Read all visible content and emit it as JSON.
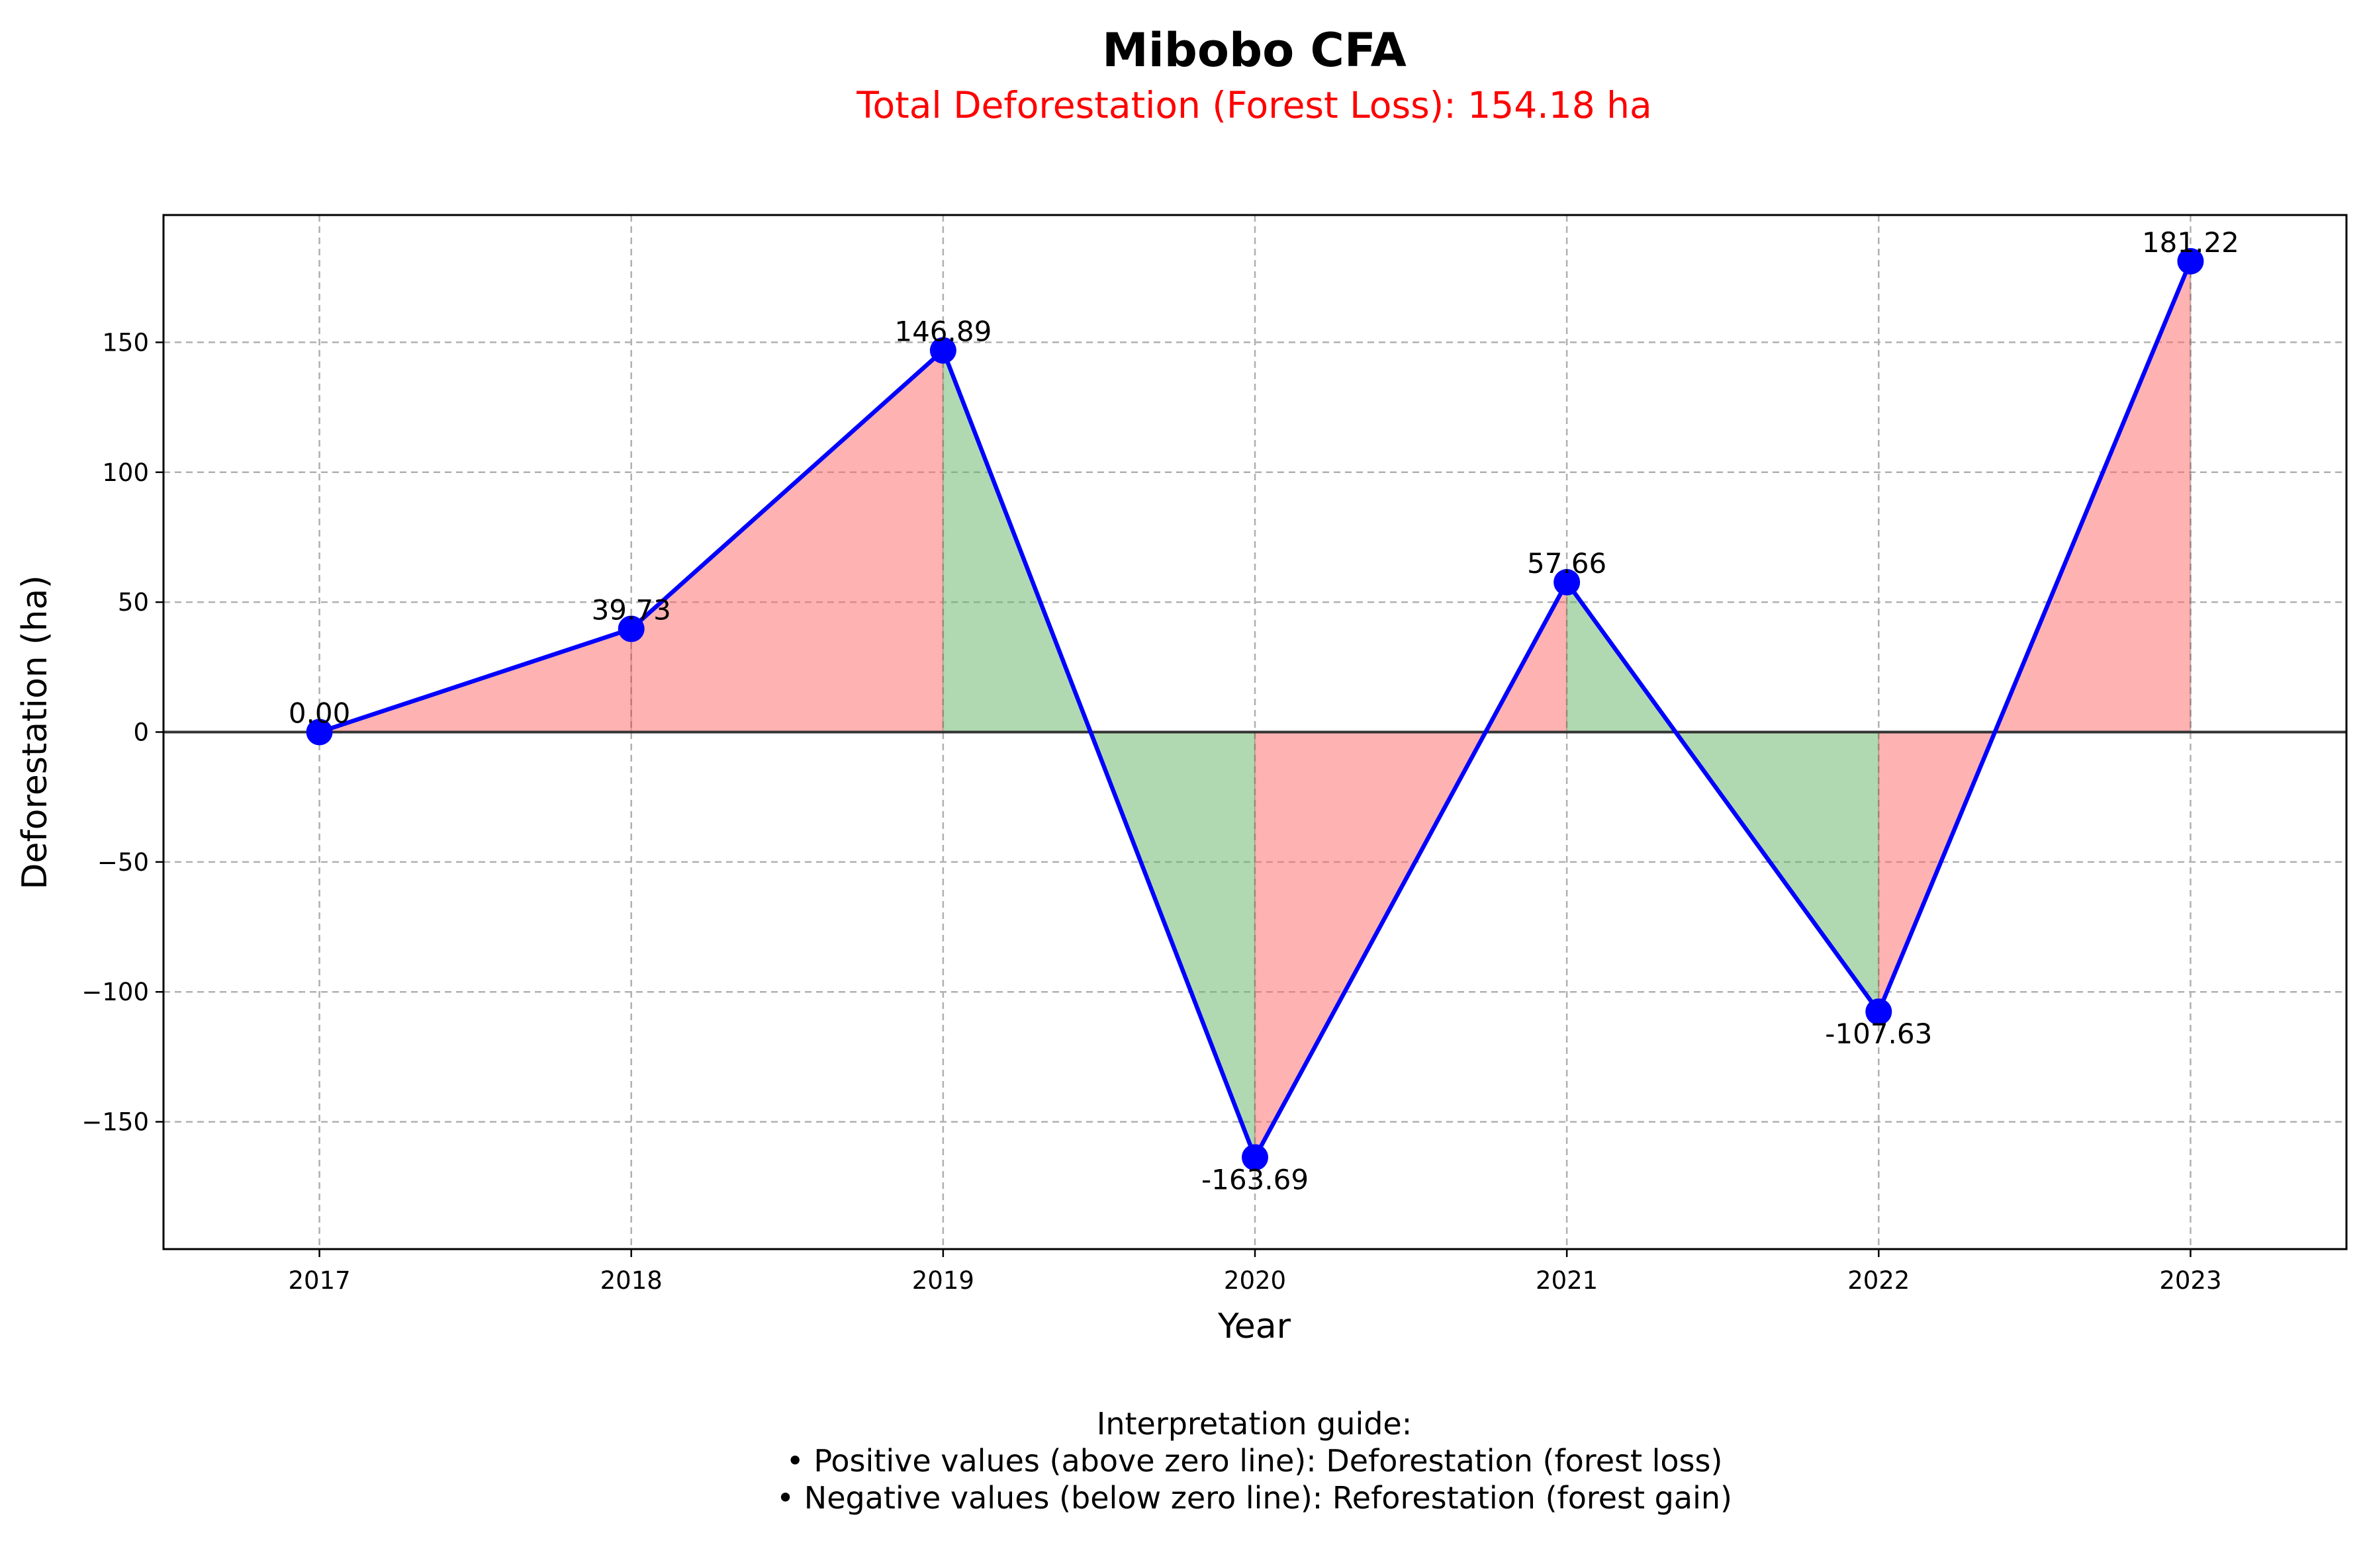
{
  "colors": {
    "line": "#0000ff",
    "marker": "#0000ff",
    "loss_fill": "#ff6b6b",
    "gain_fill": "#6ab76a",
    "subtitle": "#ff0000",
    "zero_line": "#333333",
    "grid": "#b0b0b0"
  },
  "chart_data": {
    "type": "line",
    "title": "Mibobo CFA",
    "subtitle": "Total Deforestation (Forest Loss): 154.18 ha",
    "xlabel": "Year",
    "ylabel": "Deforestation (ha)",
    "categories": [
      "2017",
      "2018",
      "2019",
      "2020",
      "2021",
      "2022",
      "2023"
    ],
    "values": [
      0.0,
      39.73,
      146.89,
      -163.69,
      57.66,
      -107.63,
      181.22
    ],
    "data_labels": [
      "0.00",
      "39.73",
      "146.89",
      "-163.69",
      "57.66",
      "-107.63",
      "181.22"
    ],
    "ylim": [
      -199,
      199
    ],
    "y_ticks": [
      -150,
      -100,
      -50,
      0,
      50,
      100,
      150
    ],
    "y_tick_labels": [
      "−150",
      "−100",
      "−50",
      "0",
      "50",
      "100",
      "150"
    ],
    "grid": true,
    "fill": "between consecutive values: red where the value increased, green where it decreased"
  },
  "notes": {
    "heading": "Interpretation guide:",
    "line1": "• Positive values (above zero line): Deforestation (forest loss)",
    "line2": "• Negative values (below zero line): Reforestation (forest gain)"
  }
}
